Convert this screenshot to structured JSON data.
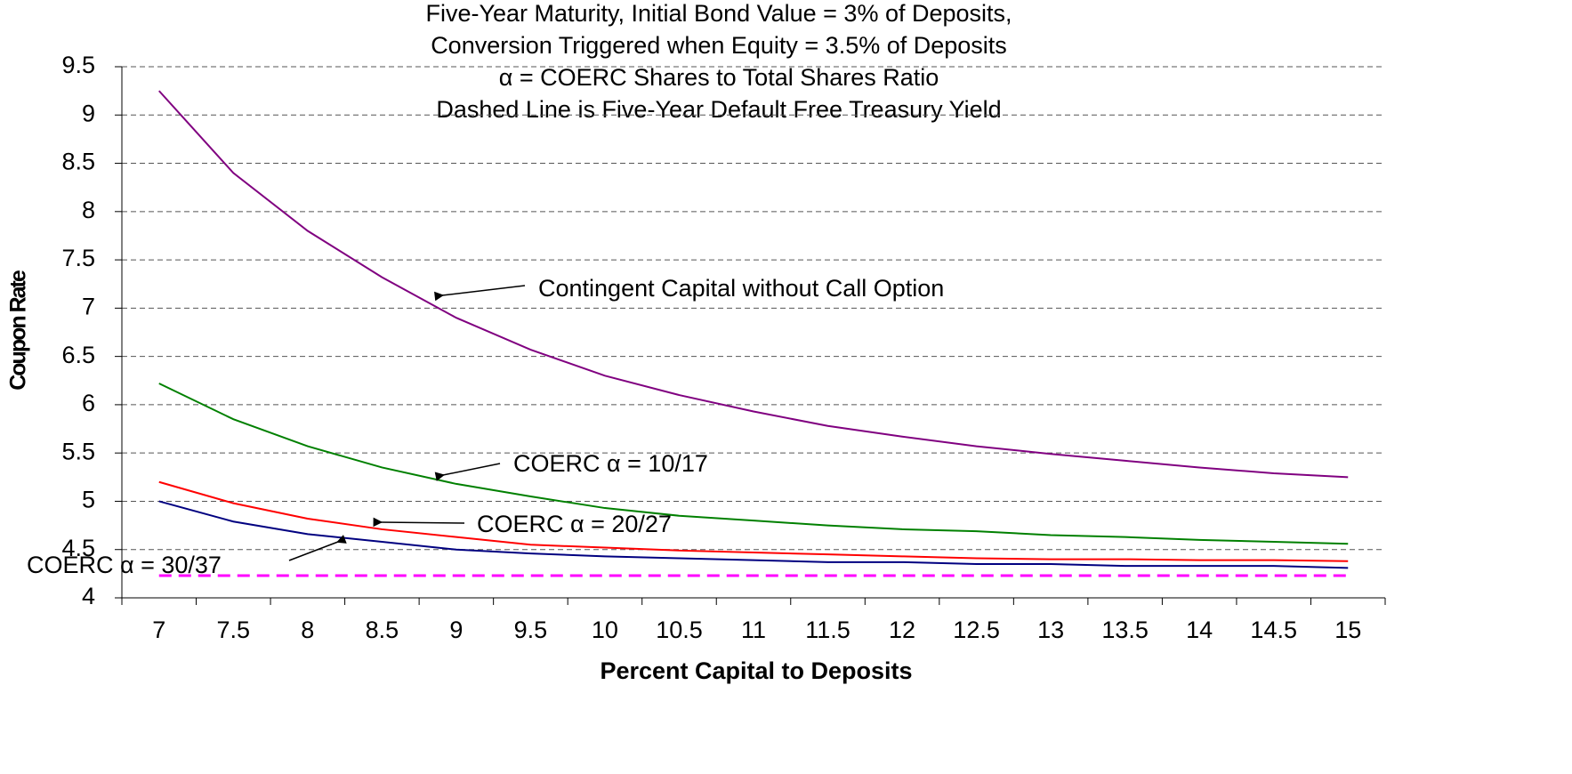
{
  "chart_data": {
    "type": "line",
    "title": [
      "Five-Year Maturity, Initial Bond Value = 3% of Deposits,",
      "Conversion Triggered when Equity = 3.5% of Deposits",
      "α = COERC Shares to Total Shares Ratio",
      "Dashed Line is Five-Year Default Free Treasury Yield"
    ],
    "xlabel": "Percent Capital to Deposits",
    "ylabel": "Coupon Rate",
    "categories": [
      7,
      7.5,
      8,
      8.5,
      9,
      9.5,
      10,
      10.5,
      11,
      11.5,
      12,
      12.5,
      13,
      13.5,
      14,
      14.5,
      15
    ],
    "series": [
      {
        "name": "Contingent Capital without Call Option",
        "color": "#800080",
        "values": [
          9.25,
          8.4,
          7.8,
          7.32,
          6.9,
          6.57,
          6.3,
          6.1,
          5.93,
          5.78,
          5.67,
          5.57,
          5.49,
          5.42,
          5.35,
          5.29,
          5.25
        ]
      },
      {
        "name": "COERC α = 10/17",
        "color": "#008000",
        "values": [
          6.22,
          5.85,
          5.57,
          5.35,
          5.18,
          5.05,
          4.93,
          4.85,
          4.8,
          4.75,
          4.71,
          4.69,
          4.65,
          4.63,
          4.6,
          4.58,
          4.56
        ]
      },
      {
        "name": "COERC α = 20/27",
        "color": "#ff0000",
        "values": [
          5.2,
          4.98,
          4.82,
          4.71,
          4.63,
          4.55,
          4.52,
          4.49,
          4.47,
          4.45,
          4.43,
          4.41,
          4.4,
          4.4,
          4.39,
          4.39,
          4.38
        ]
      },
      {
        "name": "COERC α = 30/37",
        "color": "#000080",
        "values": [
          5.0,
          4.79,
          4.66,
          4.58,
          4.5,
          4.46,
          4.43,
          4.41,
          4.39,
          4.37,
          4.37,
          4.35,
          4.35,
          4.33,
          4.33,
          4.33,
          4.31
        ]
      },
      {
        "color": "#ff00ff",
        "dashed": true,
        "values": [
          4.23,
          4.23,
          4.23,
          4.23,
          4.23,
          4.23,
          4.23,
          4.23,
          4.23,
          4.23,
          4.23,
          4.23,
          4.23,
          4.23,
          4.23,
          4.23,
          4.23
        ]
      }
    ],
    "ylim": [
      4,
      9.5
    ],
    "yticks": [
      4,
      4.5,
      5,
      5.5,
      6,
      6.5,
      7,
      7.5,
      8,
      8.5,
      9,
      9.5
    ],
    "grid": true
  }
}
